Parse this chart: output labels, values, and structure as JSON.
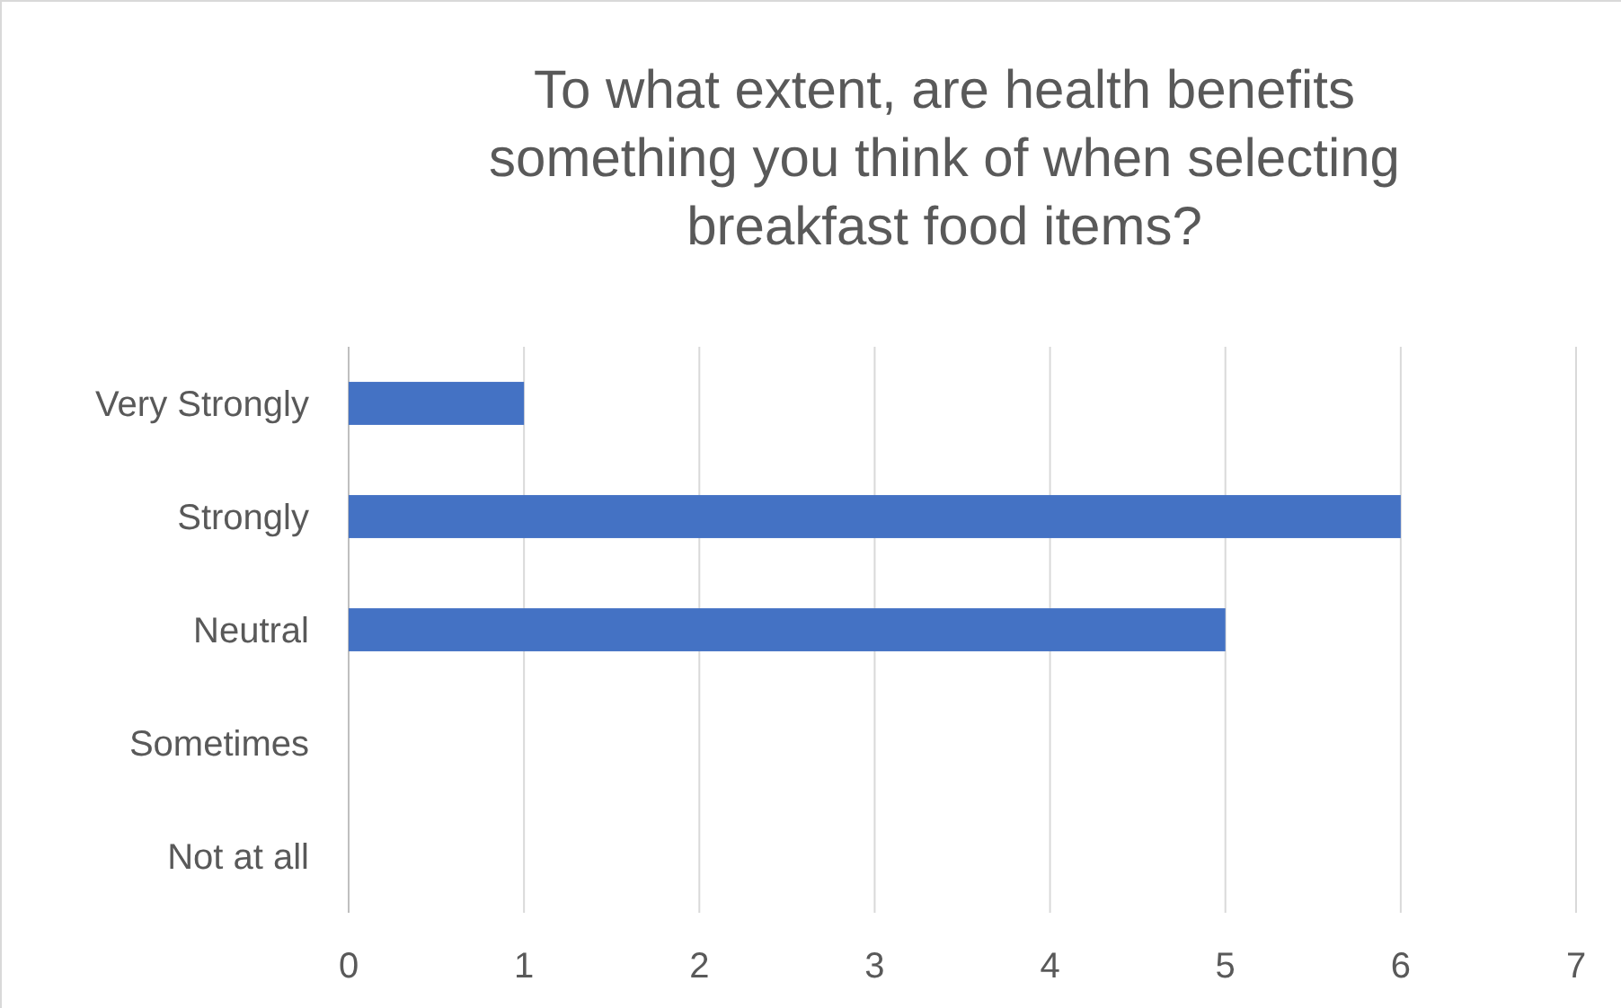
{
  "chart_data": {
    "type": "bar",
    "orientation": "horizontal",
    "title": "To what extent, are health benefits something you think of when selecting breakfast food items?",
    "categories": [
      "Very Strongly",
      "Strongly",
      "Neutral",
      "Sometimes",
      "Not at all"
    ],
    "values": [
      1,
      6,
      5,
      0,
      0
    ],
    "color": "#4472c4",
    "xlim": [
      0,
      7
    ],
    "xticks": [
      0,
      1,
      2,
      3,
      4,
      5,
      6,
      7
    ],
    "grid": "x"
  }
}
